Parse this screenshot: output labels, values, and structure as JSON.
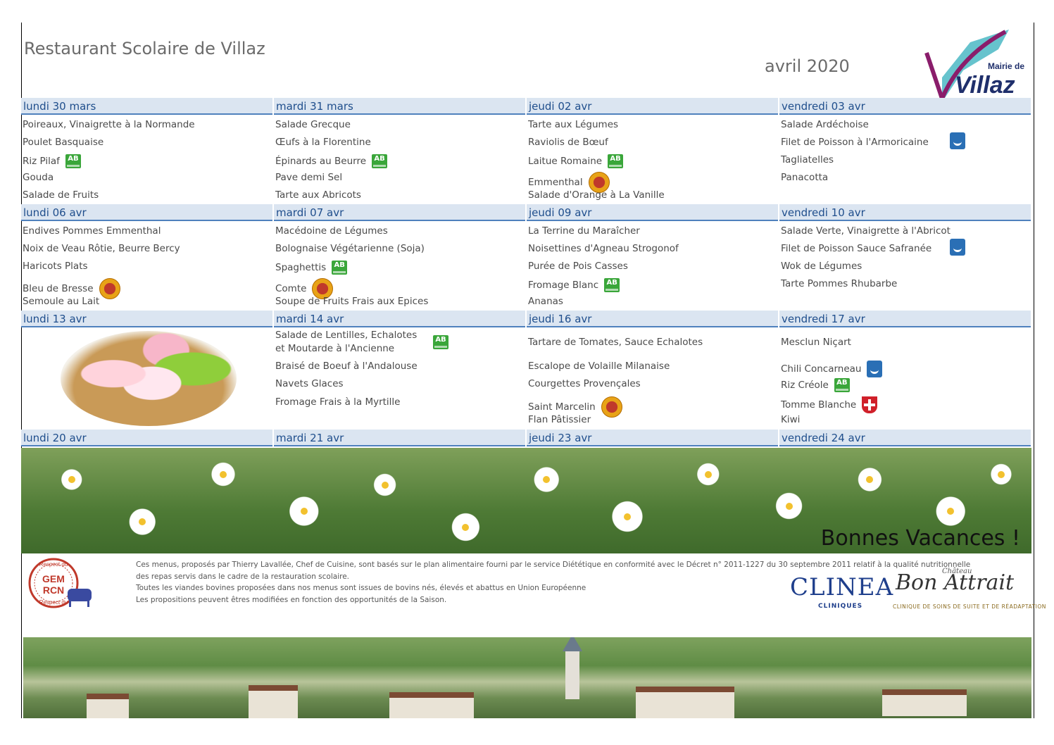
{
  "header": {
    "title": "Restaurant Scolaire de Villaz",
    "month": "avril 2020",
    "logo_text_top": "Mairie de",
    "logo_text_main": "Villaz"
  },
  "weeks": [
    {
      "days": [
        {
          "label": "lundi 30 mars",
          "items": [
            {
              "text": "Poireaux, Vinaigrette à la Normande"
            },
            {
              "text": "Poulet Basquaise"
            },
            {
              "text": "Riz Pilaf",
              "badge": "ab"
            },
            {
              "text": "Gouda"
            },
            {
              "text": "Salade de Fruits"
            }
          ]
        },
        {
          "label": "mardi 31 mars",
          "items": [
            {
              "text": "Salade Grecque"
            },
            {
              "text": "Œufs à la Florentine"
            },
            {
              "text": "Épinards au Beurre",
              "badge": "ab"
            },
            {
              "text": "Pave demi Sel"
            },
            {
              "text": "Tarte aux Abricots"
            }
          ]
        },
        {
          "label": "jeudi 02 avr",
          "items": [
            {
              "text": "Tarte aux Légumes"
            },
            {
              "text": "Raviolis de Bœuf"
            },
            {
              "text": " Laitue Romaine",
              "badge": "ab"
            },
            {
              "text": "Emmenthal",
              "badge": "lr"
            },
            {
              "text": "Salade d'Orange à La Vanille"
            }
          ]
        },
        {
          "label": "vendredi 03 avr",
          "items": [
            {
              "text": "Salade Ardéchoise"
            },
            {
              "text": "Filet de Poisson à l'Armoricaine",
              "badge": "msc"
            },
            {
              "text": "Tagliatelles"
            },
            {
              "text": "Panacotta"
            },
            {
              "text": ""
            }
          ]
        }
      ]
    },
    {
      "days": [
        {
          "label": "lundi 06 avr",
          "items": [
            {
              "text": "Endives Pommes Emmenthal"
            },
            {
              "text": "Noix de Veau Rôtie, Beurre Bercy"
            },
            {
              "text": "Haricots Plats"
            },
            {
              "text": "Bleu de Bresse",
              "badge": "lr"
            },
            {
              "text": "Semoule au Lait"
            }
          ]
        },
        {
          "label": "mardi 07 avr",
          "items": [
            {
              "text": "Macédoine de Légumes"
            },
            {
              "text": "Bolognaise Végétarienne (Soja)"
            },
            {
              "text": "Spaghettis",
              "badge": "ab"
            },
            {
              "text": "Comte",
              "badge": "lr"
            },
            {
              "text": "Soupe de Fruits Frais aux Epices"
            }
          ]
        },
        {
          "label": "jeudi 09 avr",
          "items": [
            {
              "text": "La Terrine du Maraîcher"
            },
            {
              "text": "Noisettines d'Agneau Strogonof"
            },
            {
              "text": "Purée de Pois Casses"
            },
            {
              "text": "Fromage Blanc",
              "badge": "ab"
            },
            {
              "text": "Ananas"
            }
          ]
        },
        {
          "label": "vendredi 10 avr",
          "items": [
            {
              "text": "Salade Verte, Vinaigrette à l'Abricot"
            },
            {
              "text": "Filet de Poisson Sauce Safranée",
              "badge": "msc"
            },
            {
              "text": "Wok de Légumes"
            },
            {
              "text": "Tarte Pommes Rhubarbe"
            },
            {
              "text": ""
            }
          ]
        }
      ]
    },
    {
      "days": [
        {
          "label": "lundi 13 avr",
          "items": []
        },
        {
          "label": "mardi 14 avr",
          "items": [
            {
              "text": "Salade de Lentilles, Echalotes",
              "text2": " et Moutarde à l'Ancienne",
              "badge": "ab"
            },
            {
              "text": "Braisé de Boeuf à l'Andalouse"
            },
            {
              "text": "Navets Glaces"
            },
            {
              "text": "Fromage Frais à la Myrtille"
            },
            {
              "text": ""
            }
          ]
        },
        {
          "label": "jeudi 16 avr",
          "items": [
            {
              "text": "Tartare de Tomates, Sauce Echalotes"
            },
            {
              "text": "Escalope de Volaille Milanaise"
            },
            {
              "text": "Courgettes Provençales"
            },
            {
              "text": "Saint Marcelin",
              "badge": "lr"
            },
            {
              "text": "Flan Pâtissier"
            }
          ]
        },
        {
          "label": "vendredi 17 avr",
          "items": [
            {
              "text": "Mesclun Niçart"
            },
            {
              "text": "Chili Concarneau",
              "badge": "msc"
            },
            {
              "text": "Riz Créole",
              "badge": "ab"
            },
            {
              "text": "Tomme Blanche",
              "badge": "sav"
            },
            {
              "text": "Kiwi"
            }
          ]
        }
      ]
    },
    {
      "days": [
        {
          "label": "lundi 20 avr",
          "items": []
        },
        {
          "label": "mardi 21 avr",
          "items": []
        },
        {
          "label": "jeudi 23 avr",
          "items": []
        },
        {
          "label": "vendredi 24 avr",
          "items": []
        }
      ]
    }
  ],
  "badges": {
    "ab": "AB"
  },
  "vacances": "Bonnes Vacances !",
  "footer": {
    "lines": [
      "Ces menus, proposés par Thierry Lavallée, Chef de Cuisine, sont basés sur le plan alimentaire fourni par le service Diététique en conformité avec le Décret n° 2011-1227 du 30 septembre 2011 relatif à la qualité nutritionnelle",
      "des repas servis dans le cadre de la restauration scolaire.",
      "Toutes les viandes bovines proposées dans nos menus sont issues de bovins nés, élevés et abattus en Union Européenne",
      "Les propositions peuvent êtres modifiées en fonction des opportunités de la Saison."
    ],
    "gem_top": "Respect du",
    "gem_main1": "GEM",
    "gem_main2": "RCN",
    "gem_bottom": "Respect du",
    "clinea": "CLINEA",
    "clinea_sub": "CLINIQUES",
    "bon_attrait": "Bon Attrait",
    "bon_chateau": "Château",
    "bon_sub": "CLINIQUE DE SOINS DE SUITE ET DE RÉADAPTATION"
  },
  "colors": {
    "header_bg": "#dbe5f1",
    "header_text": "#1f4e8c",
    "rule": "#4f81bd"
  }
}
